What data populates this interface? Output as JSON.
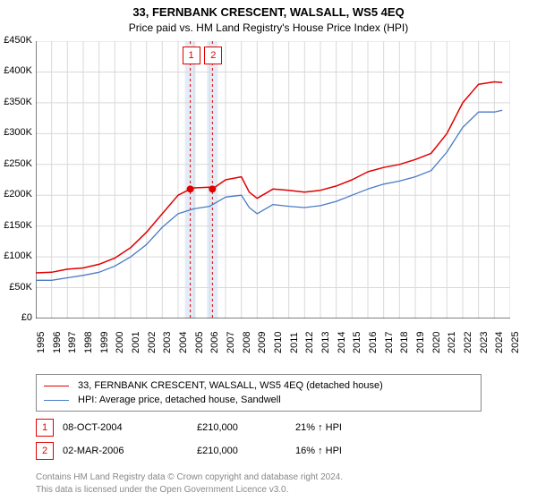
{
  "title": "33, FERNBANK CRESCENT, WALSALL, WS5 4EQ",
  "subtitle": "Price paid vs. HM Land Registry's House Price Index (HPI)",
  "chart": {
    "type": "line",
    "x_domain": [
      1995,
      2025
    ],
    "y_domain": [
      0,
      450000
    ],
    "y_ticks": [
      0,
      50000,
      100000,
      150000,
      200000,
      250000,
      300000,
      350000,
      400000,
      450000
    ],
    "y_tick_labels": [
      "£0",
      "£50K",
      "£100K",
      "£150K",
      "£200K",
      "£250K",
      "£300K",
      "£350K",
      "£400K",
      "£450K"
    ],
    "x_ticks": [
      1995,
      1996,
      1997,
      1998,
      1999,
      2000,
      2001,
      2002,
      2003,
      2004,
      2005,
      2006,
      2007,
      2008,
      2009,
      2010,
      2011,
      2012,
      2013,
      2014,
      2015,
      2016,
      2017,
      2018,
      2019,
      2020,
      2021,
      2022,
      2023,
      2024,
      2025
    ],
    "grid_color": "#d9d9d9",
    "axis_color": "#000000",
    "background": "#ffffff",
    "label_fontsize": 11,
    "title_fontsize": 13,
    "series": [
      {
        "name": "property",
        "label": "33, FERNBANK CRESCENT, WALSALL, WS5 4EQ (detached house)",
        "color": "#e00000",
        "width": 1.5,
        "x": [
          1995,
          1996,
          1997,
          1998,
          1999,
          2000,
          2001,
          2002,
          2003,
          2004,
          2004.77,
          2005,
          2006,
          2006.17,
          2007,
          2008,
          2008.5,
          2009,
          2010,
          2011,
          2012,
          2013,
          2014,
          2015,
          2016,
          2017,
          2018,
          2019,
          2020,
          2021,
          2022,
          2023,
          2024,
          2024.5
        ],
        "y": [
          74000,
          75000,
          80000,
          82000,
          88000,
          98000,
          115000,
          140000,
          170000,
          200000,
          210000,
          212000,
          213000,
          210000,
          225000,
          230000,
          205000,
          195000,
          210000,
          208000,
          205000,
          208000,
          215000,
          225000,
          238000,
          245000,
          250000,
          258000,
          268000,
          300000,
          350000,
          380000,
          384000,
          383000
        ]
      },
      {
        "name": "hpi",
        "label": "HPI: Average price, detached house, Sandwell",
        "color": "#4a7bc4",
        "width": 1.3,
        "x": [
          1995,
          1996,
          1997,
          1998,
          1999,
          2000,
          2001,
          2002,
          2003,
          2004,
          2005,
          2006,
          2007,
          2008,
          2008.5,
          2009,
          2010,
          2011,
          2012,
          2013,
          2014,
          2015,
          2016,
          2017,
          2018,
          2019,
          2020,
          2021,
          2022,
          2023,
          2024,
          2024.5
        ],
        "y": [
          62000,
          62000,
          66000,
          70000,
          75000,
          85000,
          100000,
          120000,
          148000,
          170000,
          178000,
          182000,
          197000,
          200000,
          180000,
          170000,
          185000,
          182000,
          180000,
          183000,
          190000,
          200000,
          210000,
          218000,
          223000,
          230000,
          240000,
          270000,
          310000,
          335000,
          335000,
          338000
        ]
      }
    ],
    "events": [
      {
        "id": "1",
        "date_label": "08-OCT-2004",
        "x": 2004.77,
        "price_label": "£210,000",
        "pct_label": "21% ↑ HPI",
        "band_color": "#e3ecf7"
      },
      {
        "id": "2",
        "date_label": "02-MAR-2006",
        "x": 2006.17,
        "price_label": "£210,000",
        "pct_label": "16% ↑ HPI",
        "band_color": "#e3ecf7"
      }
    ],
    "event_marker": {
      "color": "#e00000",
      "radius": 4
    }
  },
  "footer1": "Contains HM Land Registry data © Crown copyright and database right 2024.",
  "footer2": "This data is licensed under the Open Government Licence v3.0."
}
